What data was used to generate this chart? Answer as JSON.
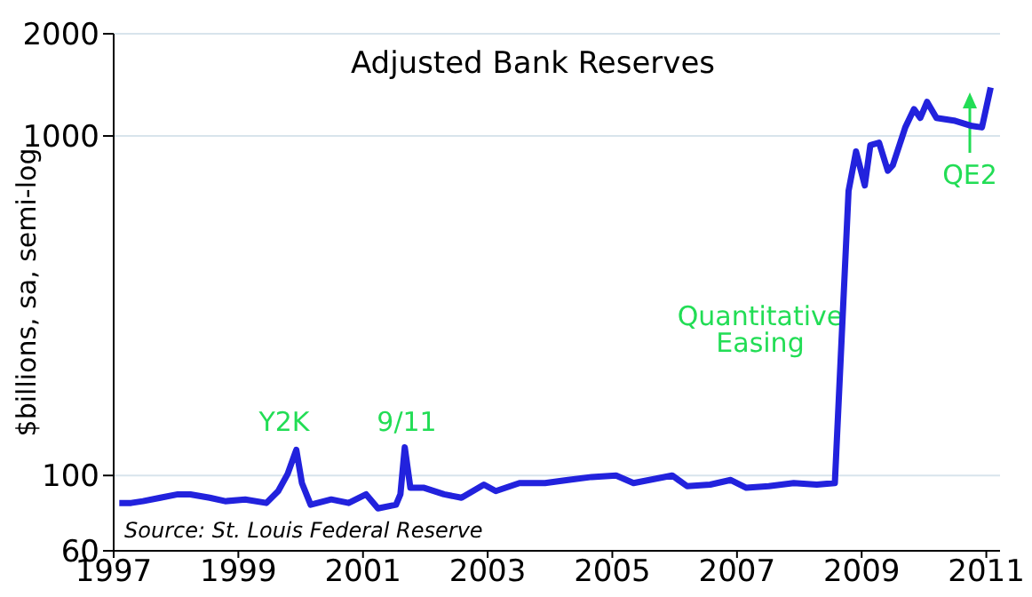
{
  "chart_data": {
    "type": "line",
    "title": "Adjusted Bank Reserves",
    "ylabel": "$billions, sa, semi-log",
    "x": [
      1997.09,
      1997.28,
      1997.47,
      1997.75,
      1998.03,
      1998.23,
      1998.54,
      1998.79,
      1999.11,
      1999.45,
      1999.64,
      1999.79,
      1999.93,
      2000.02,
      2000.16,
      2000.49,
      2000.77,
      2001.05,
      2001.24,
      2001.53,
      2001.6,
      2001.67,
      2001.76,
      2001.98,
      2002.3,
      2002.58,
      2002.94,
      2003.13,
      2003.51,
      2003.92,
      2004.29,
      2004.67,
      2005.06,
      2005.34,
      2005.96,
      2006.2,
      2006.57,
      2006.9,
      2007.15,
      2007.51,
      2007.91,
      2008.28,
      2008.57,
      2008.79,
      2008.91,
      2009.05,
      2009.14,
      2009.28,
      2009.42,
      2009.5,
      2009.7,
      2009.84,
      2009.94,
      2010.05,
      2010.2,
      2010.48,
      2010.77,
      2010.93,
      2011.07
    ],
    "series": [
      {
        "color": "#2222dd",
        "values": [
          83,
          83,
          84,
          86,
          88,
          88,
          86,
          84,
          85,
          83,
          90,
          101,
          119,
          95,
          82,
          85,
          83,
          88,
          80,
          82,
          88,
          121,
          92,
          92,
          88,
          86,
          94,
          90,
          95,
          95,
          97,
          99,
          100,
          95,
          100,
          93,
          94,
          97,
          92,
          93,
          95,
          94,
          95,
          689,
          900,
          715,
          940,
          955,
          790,
          820,
          1060,
          1200,
          1130,
          1260,
          1130,
          1110,
          1070,
          1060,
          1390
        ]
      }
    ],
    "xlim": [
      1997,
      2011.22
    ],
    "xticks": [
      1997,
      1999,
      2001,
      2003,
      2005,
      2007,
      2009,
      2011
    ],
    "ylim": [
      60,
      2000
    ],
    "yticks": [
      60,
      100,
      1000,
      2000
    ],
    "log": "y",
    "grid": "y",
    "marker": "none",
    "line_style": "solid",
    "annotations": [
      "Y2K",
      "9/11",
      "Quantitative Easing",
      "QE2",
      "Source:  St. Louis Federal Reserve"
    ]
  }
}
